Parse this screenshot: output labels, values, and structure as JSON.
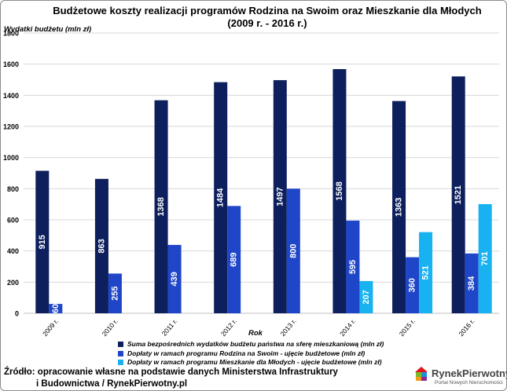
{
  "title_line1": "Budżetowe koszty realizacji programów Rodzina na Swoim oraz Mieszkanie dla Młodych",
  "title_line2": "(2009 r. - 2016 r.)",
  "source_line1": "Źródło: opracowanie własne na podstawie danych Ministerstwa Infrastruktury",
  "source_line2": "i Budownictwa / RynekPierwotny.pl",
  "logo": {
    "name": "RynekPierwotny",
    "tagline": "Portal Nowych Nieruchomości",
    "icon": "house-puzzle-icon"
  },
  "chart_data": {
    "type": "bar",
    "xlabel": "Rok",
    "ylabel": "Wydatki budżetu (mln zł)",
    "ylim": [
      0,
      1800
    ],
    "yticks": [
      0,
      200,
      400,
      600,
      800,
      1000,
      1200,
      1400,
      1600,
      1800
    ],
    "grid": true,
    "legend_position": "bottom",
    "categories": [
      "2009 r.",
      "2010 r.",
      "2011 r.",
      "2012 r.",
      "2013 r.",
      "2014 r.",
      "2015 r.",
      "2016 r."
    ],
    "series": [
      {
        "name": "Suma bezpośrednich wydatków budżetu państwa na sferę mieszkaniową (mln zł)",
        "color": "#0d1f5c",
        "values": [
          915,
          863,
          1368,
          1484,
          1497,
          1568,
          1363,
          1521
        ]
      },
      {
        "name": "Dopłaty w ramach programu Rodzina na Swoim - ujęcie budżetowe (mln zł)",
        "color": "#1f45c8",
        "values": [
          60,
          255,
          439,
          689,
          800,
          595,
          360,
          384
        ]
      },
      {
        "name": "Dopłaty w ramach programu Mieszkanie dla Młodych - ujęcie budżetowe (mln zł)",
        "color": "#19b2f0",
        "values": [
          null,
          null,
          null,
          null,
          null,
          207,
          521,
          701
        ]
      }
    ]
  }
}
